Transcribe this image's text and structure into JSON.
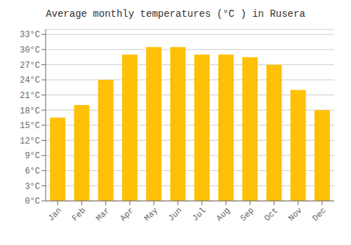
{
  "chart_data": {
    "type": "bar",
    "title": "Average monthly temperatures (°C ) in Rusera",
    "categories": [
      "Jan",
      "Feb",
      "Mar",
      "Apr",
      "May",
      "Jun",
      "Jul",
      "Aug",
      "Sep",
      "Oct",
      "Nov",
      "Dec"
    ],
    "values": [
      16.5,
      19.0,
      24.0,
      29.0,
      30.5,
      30.5,
      29.0,
      29.0,
      28.5,
      27.0,
      22.0,
      18.0
    ],
    "color": "#FFC107",
    "ylim": [
      0,
      34
    ],
    "yticks": [
      {
        "value": 0,
        "label": "0°C"
      },
      {
        "value": 3,
        "label": "3°C"
      },
      {
        "value": 6,
        "label": "6°C"
      },
      {
        "value": 9,
        "label": "9°C"
      },
      {
        "value": 12,
        "label": "12°C"
      },
      {
        "value": 15,
        "label": "15°C"
      },
      {
        "value": 18,
        "label": "18°C"
      },
      {
        "value": 21,
        "label": "21°C"
      },
      {
        "value": 24,
        "label": "24°C"
      },
      {
        "value": 27,
        "label": "27°C"
      },
      {
        "value": 30,
        "label": "30°C"
      },
      {
        "value": 33,
        "label": "33°C"
      }
    ],
    "grid": true
  }
}
